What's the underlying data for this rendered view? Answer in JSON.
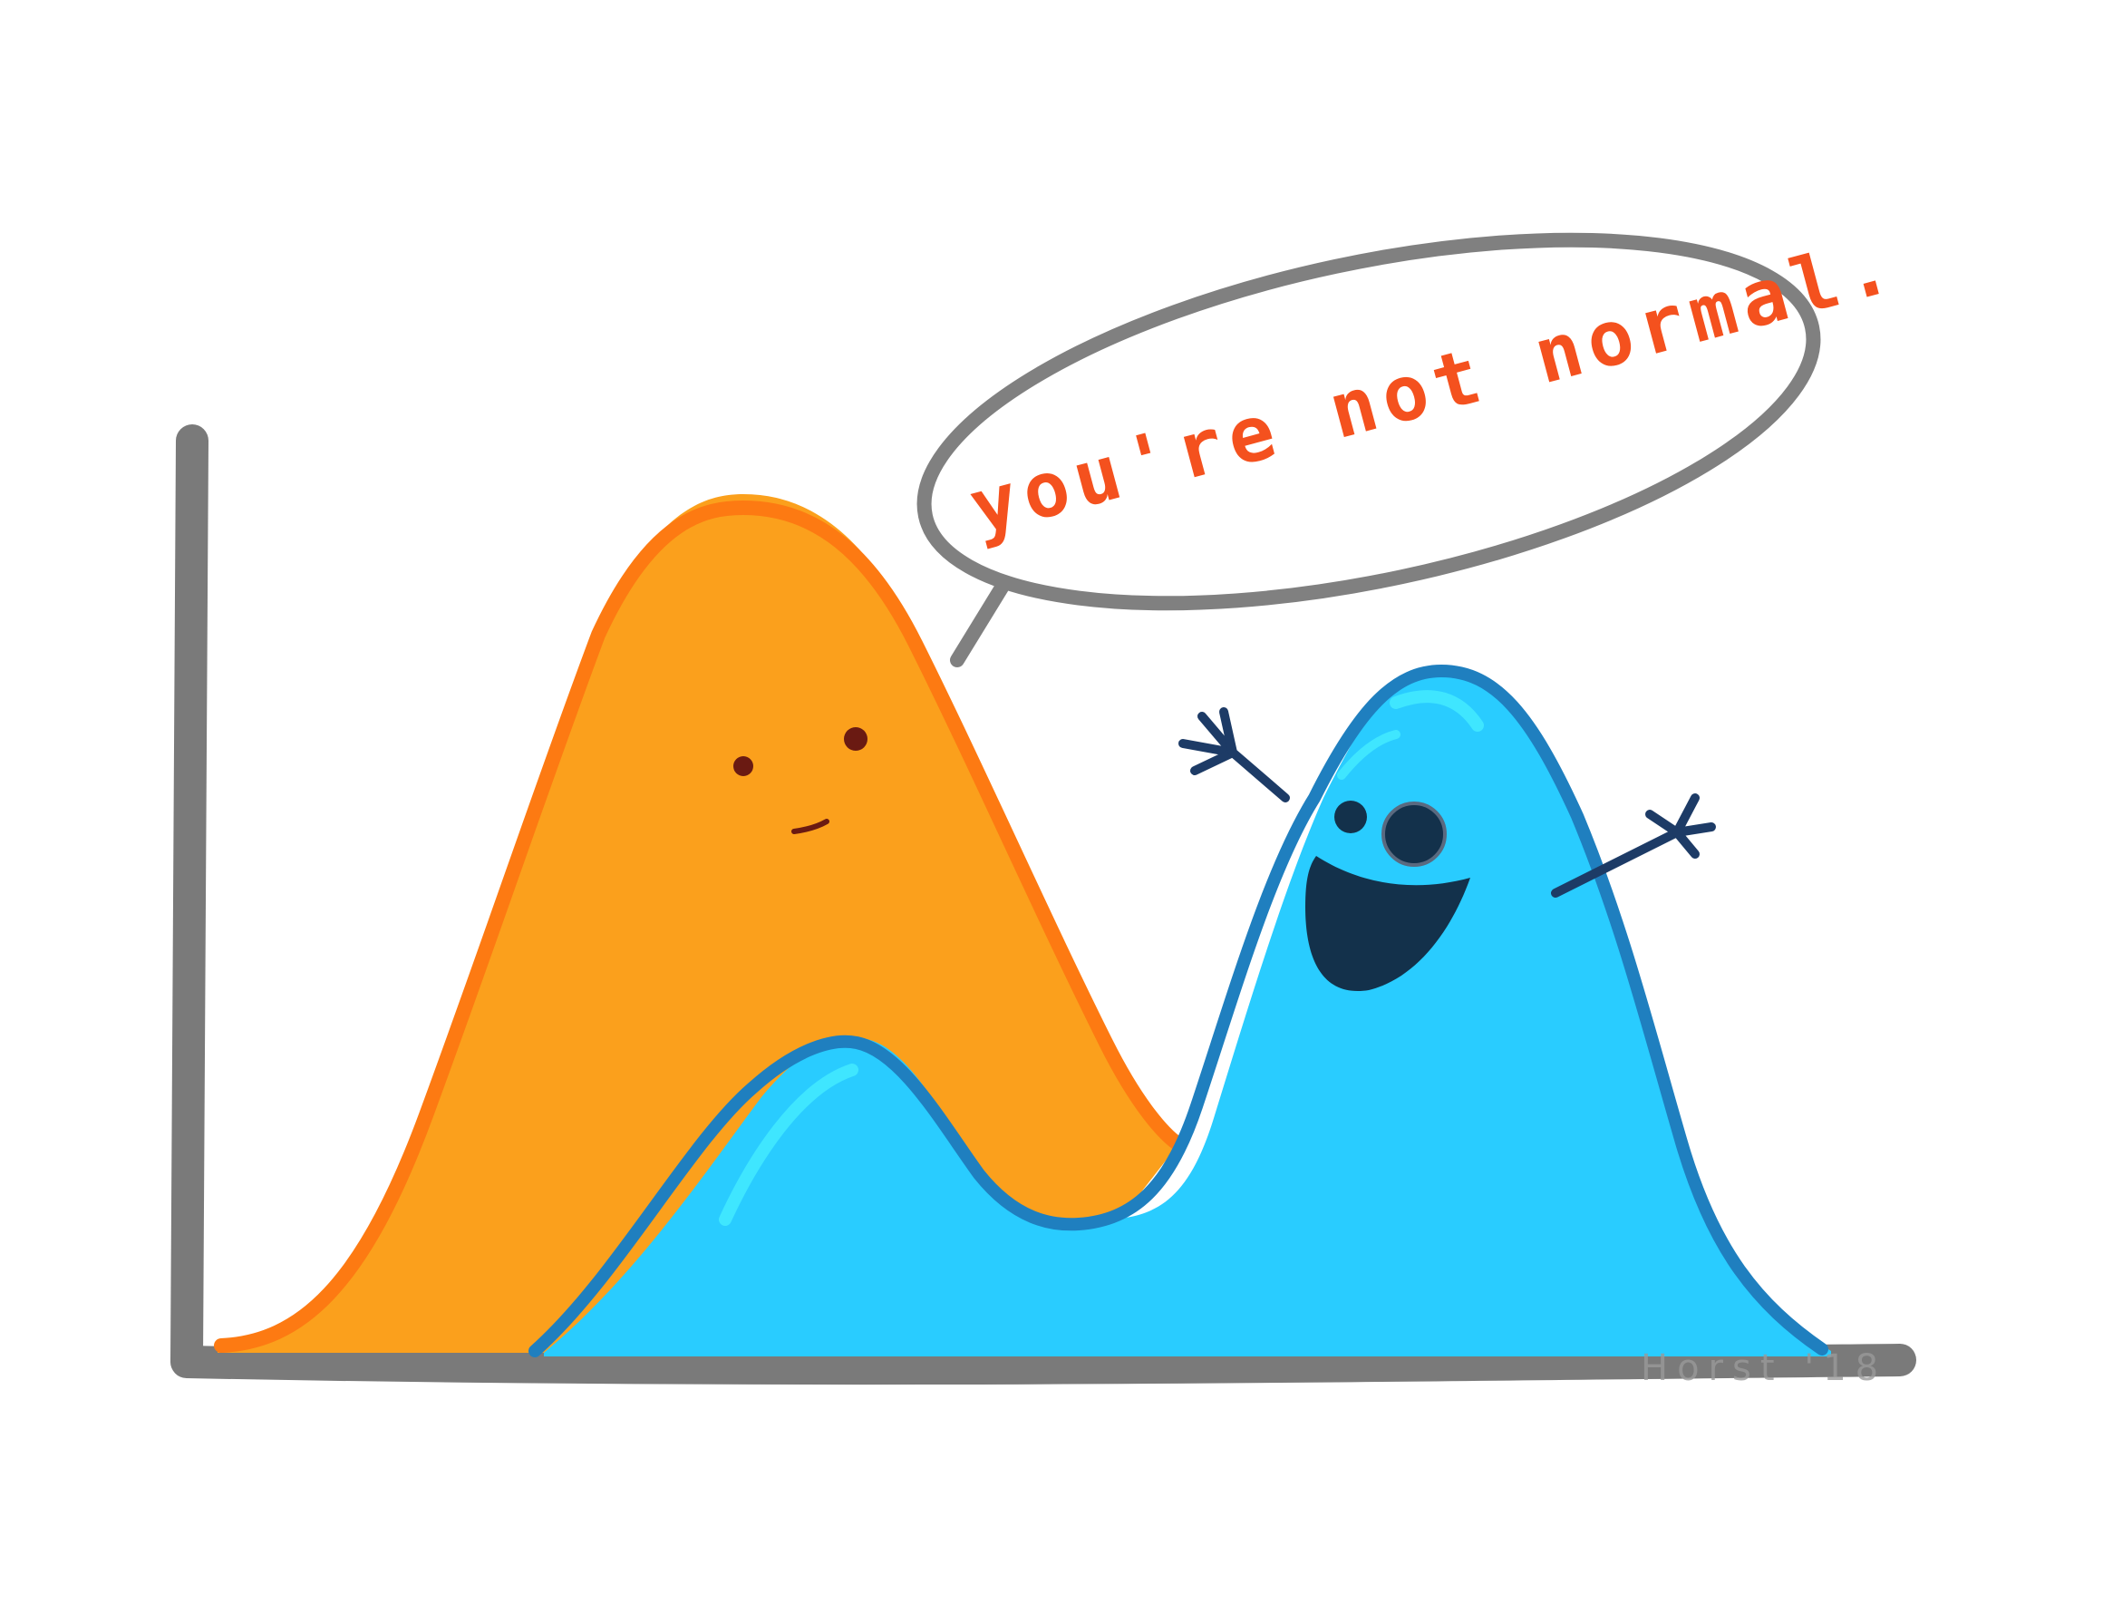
{
  "speech_bubble": {
    "text": "you're not normal."
  },
  "signature": {
    "text": "Horst '18"
  },
  "colors": {
    "background": "#ffffff",
    "axis": "#7a7a7a",
    "orange_fill": "#fba01c",
    "orange_outline": "#fd7a12",
    "blue_fill": "#29ccff",
    "blue_outline": "#1f7fbf",
    "blue_highlight": "#3fe6ff",
    "face_dark": "#13314b",
    "orange_face": "#6a1a12",
    "speech_text": "#f4511e",
    "bubble_outline": "#808080"
  },
  "characters": {
    "unimodal": {
      "icon": "orange-bell-curve-icon",
      "expression": "neutral"
    },
    "bimodal": {
      "icon": "blue-bimodal-curve-icon",
      "expression": "happy"
    }
  }
}
